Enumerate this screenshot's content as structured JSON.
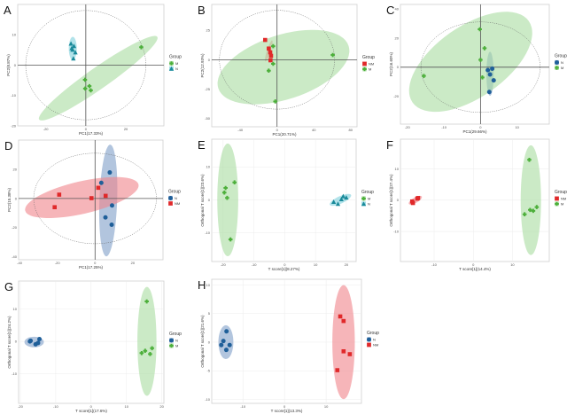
{
  "colors": {
    "M": "#4caf3a",
    "N_teal": "#1a8a9a",
    "N": "#1f5f99",
    "NM": "#e0292a"
  },
  "chart_data": [
    {
      "panel": "A",
      "type": "scatter",
      "kind": "pca",
      "xlabel": "PC1(17.33%)",
      "ylabel": "PC2(8.87%)",
      "xlim": [
        -34,
        39
      ],
      "ylim": [
        -20,
        20
      ],
      "xticks": [
        -20,
        0,
        20
      ],
      "yticks": [
        10,
        0,
        -10,
        -20
      ],
      "t2": [
        30,
        18
      ],
      "legend_title": "Group",
      "groups": [
        {
          "name": "M",
          "color": "#4caf3a",
          "fill": "#a8dca0",
          "marker": "cross",
          "ellipse": {
            "cx": 6.2,
            "cy": -4.3,
            "a": 36,
            "b": 5.3,
            "angle": 35
          },
          "points": [
            [
              27.7,
              5.9
            ],
            [
              -0.4,
              -4.8
            ],
            [
              -0.3,
              -7.7
            ],
            [
              1.8,
              -6.9
            ],
            [
              2.5,
              -8.3
            ]
          ]
        },
        {
          "name": "N",
          "color": "#1a8a9a",
          "fill": "#7fd0dc",
          "marker": "triangle",
          "ellipse": {
            "cx": -6.5,
            "cy": 5.5,
            "a": 5.8,
            "b": 2,
            "angle": 90
          },
          "points": [
            [
              -7,
              5.6
            ],
            [
              -5.9,
              6.3
            ],
            [
              -6.6,
              5.1
            ],
            [
              -5.2,
              4.2
            ],
            [
              -6.2,
              2.2
            ],
            [
              -7.4,
              7.1
            ]
          ]
        }
      ]
    },
    {
      "panel": "B",
      "type": "scatter",
      "kind": "pca",
      "xlabel": "PC1(20.71%)",
      "ylabel": "PC2(12.93%)",
      "xlim": [
        -71,
        87
      ],
      "ylim": [
        -57,
        47
      ],
      "xticks": [
        -40,
        0,
        40,
        80
      ],
      "yticks": [
        25,
        0,
        -25,
        -50
      ],
      "t2": [
        62.6,
        42
      ],
      "legend_title": "Group",
      "groups": [
        {
          "name": "NM",
          "color": "#e0292a",
          "fill": "#f0848a",
          "marker": "square",
          "ellipse": {
            "cx": -9,
            "cy": 7.5,
            "a": 12,
            "b": 2,
            "angle": 72
          },
          "points": [
            [
              -12.9,
              16.8
            ],
            [
              -9,
              9.5
            ],
            [
              -7.4,
              6.3
            ],
            [
              -6.5,
              3.3
            ],
            [
              -7.1,
              -0.5
            ]
          ]
        },
        {
          "name": "M",
          "color": "#4caf3a",
          "fill": "#a8dca0",
          "marker": "cross",
          "ellipse": {
            "cx": 7,
            "cy": -6.3,
            "a": 74.5,
            "b": 35,
            "angle": 18
          },
          "points": [
            [
              -4.2,
              11.5
            ],
            [
              60.6,
              4
            ],
            [
              -9,
              -9.3
            ],
            [
              -4.2,
              -3.5
            ],
            [
              -1.9,
              -35.5
            ]
          ]
        }
      ]
    },
    {
      "panel": "C",
      "type": "scatter",
      "kind": "pca",
      "xlabel": "PC1(29.66%)",
      "ylabel": "PC2(16.60%)",
      "xlim": [
        -21.9,
        18.8
      ],
      "ylim": [
        -39,
        43
      ],
      "xticks": [
        -20,
        -10,
        0,
        10
      ],
      "yticks": [
        40,
        20,
        0,
        -20
      ],
      "t2": [
        16.3,
        31
      ],
      "legend_title": "Group",
      "groups": [
        {
          "name": "N",
          "color": "#1f5f99",
          "fill": "#7f9ec8",
          "marker": "circle",
          "ellipse": {
            "cx": 2.6,
            "cy": -4.5,
            "a": 6,
            "b": 1,
            "angle": 90
          },
          "points": [
            [
              2,
              -2
            ],
            [
              3.2,
              -1
            ],
            [
              2.6,
              -5
            ],
            [
              3.6,
              -9
            ],
            [
              2.4,
              -17
            ]
          ]
        },
        {
          "name": "M",
          "color": "#4caf3a",
          "fill": "#a8dca0",
          "marker": "cross",
          "ellipse": {
            "cx": -2.7,
            "cy": 3.7,
            "a": 19.4,
            "b": 9.7,
            "angle": 35
          },
          "points": [
            [
              -0.2,
              26
            ],
            [
              1.1,
              13
            ],
            [
              0,
              5
            ],
            [
              0.5,
              -7
            ],
            [
              -15.5,
              -6
            ]
          ]
        }
      ]
    },
    {
      "panel": "D",
      "type": "scatter",
      "kind": "pca",
      "xlabel": "PC1(17.25%)",
      "ylabel": "PC2(15.38%)",
      "xlim": [
        -40.5,
        36
      ],
      "ylim": [
        -42,
        40
      ],
      "xticks": [
        -40,
        -20,
        0,
        20
      ],
      "yticks": [
        20,
        0,
        -20,
        -40
      ],
      "t2": [
        32.5,
        31
      ],
      "legend_title": "Group",
      "groups": [
        {
          "name": "N",
          "color": "#1f5f99",
          "fill": "#7f9ec8",
          "marker": "circle",
          "ellipse": {
            "cx": 7,
            "cy": -1.4,
            "a": 29.6,
            "b": 4.7,
            "angle": 88
          },
          "points": [
            [
              7.8,
              17.8
            ],
            [
              9,
              -4.8
            ],
            [
              5.5,
              -13
            ],
            [
              8.8,
              -18
            ],
            [
              3.3,
              10.7
            ]
          ]
        },
        {
          "name": "NM",
          "color": "#e0292a",
          "fill": "#f0848a",
          "marker": "square",
          "ellipse": {
            "cx": -7,
            "cy": 0.6,
            "a": 30.8,
            "b": 8.6,
            "angle": 13
          },
          "points": [
            [
              -19,
              2.6
            ],
            [
              -21.4,
              -6
            ],
            [
              -1.9,
              0.2
            ],
            [
              5.6,
              1.8
            ],
            [
              1.7,
              7.3
            ]
          ]
        }
      ]
    },
    {
      "panel": "E",
      "type": "scatter",
      "kind": "opls",
      "xlabel": "T score[1](8.27%)",
      "ylabel": "Orthogonal T score[1](23.6%)",
      "xlim": [
        -23.7,
        23.2
      ],
      "ylim": [
        -18.7,
        18.4
      ],
      "xticks": [
        -20,
        -10,
        0,
        10,
        20
      ],
      "yticks": [
        10,
        0,
        -10
      ],
      "legend_title": "Group",
      "groups": [
        {
          "name": "M",
          "color": "#4caf3a",
          "fill": "#a8dca0",
          "marker": "cross",
          "ellipse": {
            "cx": -18.5,
            "cy": 0,
            "a": 18.3,
            "b": 3.4,
            "angle": 90
          },
          "points": [
            [
              -16.3,
              5.3
            ],
            [
              -19.2,
              3.6
            ],
            [
              -19.6,
              2.2
            ],
            [
              -18.7,
              0.6
            ],
            [
              -17.6,
              -12
            ]
          ]
        },
        {
          "name": "N",
          "color": "#1a8a9a",
          "fill": "#7fd0dc",
          "marker": "triangle",
          "ellipse": {
            "cx": 18.1,
            "cy": 0,
            "a": 3.8,
            "b": 1.2,
            "angle": 25
          },
          "points": [
            [
              15.9,
              -0.6
            ],
            [
              17.3,
              -1.2
            ],
            [
              18.4,
              0.2
            ],
            [
              19,
              1.1
            ],
            [
              20,
              0.7
            ]
          ]
        }
      ]
    },
    {
      "panel": "F",
      "type": "scatter",
      "kind": "opls",
      "xlabel": "T score[1](14.4%)",
      "ylabel": "Orthogonal T score[1](27.4%)",
      "xlim": [
        -18.6,
        19.4
      ],
      "ylim": [
        -19.6,
        19.5
      ],
      "xticks": [
        -10,
        0,
        10
      ],
      "yticks": [
        10,
        0,
        -10
      ],
      "legend_title": "Group",
      "groups": [
        {
          "name": "NM",
          "color": "#e0292a",
          "fill": "#f0848a",
          "marker": "square",
          "ellipse": {
            "cx": -14.8,
            "cy": 0,
            "a": 1.9,
            "b": 0.7,
            "angle": 30
          },
          "points": [
            [
              -15.6,
              -0.4
            ],
            [
              -15.4,
              -0.9
            ],
            [
              -14.3,
              0.5
            ],
            [
              -14.1,
              0.7
            ]
          ]
        },
        {
          "name": "M",
          "color": "#4caf3a",
          "fill": "#a8dca0",
          "marker": "cross",
          "ellipse": {
            "cx": 14.7,
            "cy": 0,
            "a": 14,
            "b": 2.6,
            "angle": 90
          },
          "points": [
            [
              14.3,
              12.9
            ],
            [
              13.1,
              -4.5
            ],
            [
              14.5,
              -3.1
            ],
            [
              15.3,
              -3.4
            ],
            [
              16.2,
              -2.2
            ]
          ]
        }
      ]
    },
    {
      "panel": "G",
      "type": "scatter",
      "kind": "opls",
      "xlabel": "T score[1](17.6%)",
      "ylabel": "Orthogonal T score[1](24.2%)",
      "xlim": [
        -20.5,
        20.6
      ],
      "ylim": [
        -19.1,
        18.6
      ],
      "xticks": [
        -20,
        -10,
        0,
        10,
        20
      ],
      "yticks": [
        10,
        0,
        -10
      ],
      "legend_title": "Group",
      "groups": [
        {
          "name": "N",
          "color": "#1f5f99",
          "fill": "#7f9ec8",
          "marker": "circle",
          "ellipse": {
            "cx": -16.1,
            "cy": -0.2,
            "a": 2.75,
            "b": 1.5,
            "angle": 0
          },
          "points": [
            [
              -17.1,
              0.2
            ],
            [
              -15.7,
              -0.9
            ],
            [
              -15,
              -0.5
            ],
            [
              -14.6,
              0.7
            ],
            [
              -17.3,
              0
            ]
          ]
        },
        {
          "name": "M",
          "color": "#4caf3a",
          "fill": "#a8dca0",
          "marker": "cross",
          "ellipse": {
            "cx": 15.8,
            "cy": 0,
            "a": 15.4,
            "b": 2.7,
            "angle": 90
          },
          "points": [
            [
              15.75,
              12.3
            ],
            [
              14.3,
              -3.6
            ],
            [
              15.3,
              -2.9
            ],
            [
              16.7,
              -3.9
            ],
            [
              17.25,
              -2.1
            ]
          ]
        }
      ]
    },
    {
      "panel": "H",
      "type": "scatter",
      "kind": "opls",
      "xlabel": "T score[1](13.3%)",
      "ylabel": "Orthogonal T score[1](21.6%)",
      "xlim": [
        -17.5,
        18.5
      ],
      "ylim": [
        -10.7,
        11
      ],
      "xticks": [
        -10,
        0,
        10
      ],
      "yticks": [
        10,
        5,
        0,
        -5,
        -10
      ],
      "legend_title": "Group",
      "groups": [
        {
          "name": "N",
          "color": "#1f5f99",
          "fill": "#7f9ec8",
          "marker": "circle",
          "ellipse": {
            "cx": -14.1,
            "cy": 0,
            "a": 4.06,
            "b": 1.8,
            "angle": 90
          },
          "points": [
            [
              -13.95,
              1.9
            ],
            [
              -14.7,
              0.2
            ],
            [
              -15.2,
              -0.5
            ],
            [
              -13.2,
              -0.5
            ],
            [
              -14,
              -1.35
            ]
          ]
        },
        {
          "name": "NM",
          "color": "#e0292a",
          "fill": "#f0848a",
          "marker": "square",
          "ellipse": {
            "cx": 14.2,
            "cy": 0,
            "a": 13.7,
            "b": 2.7,
            "angle": 90
          },
          "points": [
            [
              13.4,
              4.5
            ],
            [
              14.2,
              3.7
            ],
            [
              14.2,
              -1.6
            ],
            [
              15.7,
              -2.1
            ],
            [
              12.7,
              -4.9
            ]
          ]
        }
      ]
    }
  ]
}
